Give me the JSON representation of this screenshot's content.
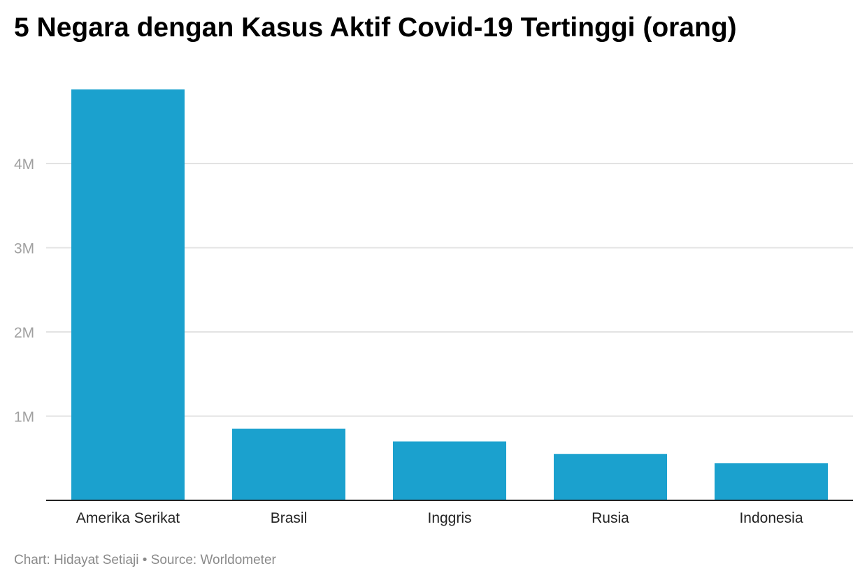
{
  "chart_data": {
    "type": "bar",
    "title": "5 Negara dengan Kasus Aktif Covid-19 Tertinggi (orang)",
    "xlabel": "",
    "ylabel": "",
    "categories": [
      "Amerika Serikat",
      "Brasil",
      "Inggris",
      "Rusia",
      "Indonesia"
    ],
    "values": [
      4880000,
      850000,
      700000,
      550000,
      440000
    ],
    "ylim": [
      0,
      5000000
    ],
    "yticks": [
      1000000,
      2000000,
      3000000,
      4000000
    ],
    "ytick_labels": [
      "1M",
      "2M",
      "3M",
      "4M"
    ],
    "grid": true,
    "bar_color": "#1ba1ce",
    "grid_color": "#e3e3e3",
    "axis_color": "#222222"
  },
  "footer": {
    "credit": "Chart: Hidayat Setiaji",
    "separator": "•",
    "source": "Source: Worldometer"
  }
}
